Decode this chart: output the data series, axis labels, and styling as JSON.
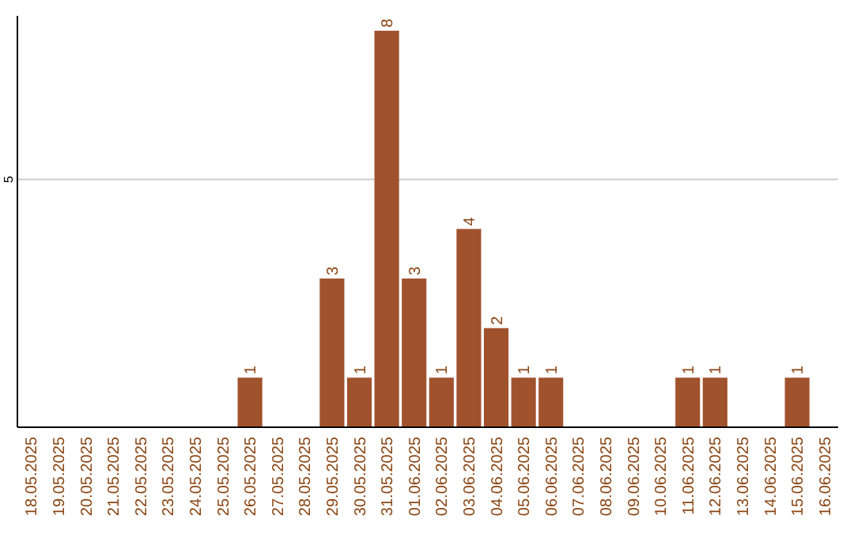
{
  "chart_data": {
    "type": "bar",
    "categories": [
      "18.05.2025",
      "19.05.2025",
      "20.05.2025",
      "21.05.2025",
      "22.05.2025",
      "23.05.2025",
      "24.05.2025",
      "25.05.2025",
      "26.05.2025",
      "27.05.2025",
      "28.05.2025",
      "29.05.2025",
      "30.05.2025",
      "31.05.2025",
      "01.06.2025",
      "02.06.2025",
      "03.06.2025",
      "04.06.2025",
      "05.06.2025",
      "06.06.2025",
      "07.06.2025",
      "08.06.2025",
      "09.06.2025",
      "10.06.2025",
      "11.06.2025",
      "12.06.2025",
      "13.06.2025",
      "14.06.2025",
      "15.06.2025",
      "16.06.2025"
    ],
    "values": [
      0,
      0,
      0,
      0,
      0,
      0,
      0,
      0,
      1,
      0,
      0,
      3,
      1,
      8,
      3,
      1,
      4,
      2,
      1,
      1,
      0,
      0,
      0,
      0,
      1,
      1,
      0,
      0,
      1,
      0
    ],
    "value_labels": [
      null,
      null,
      null,
      null,
      null,
      null,
      null,
      null,
      "1",
      null,
      null,
      "3",
      "1",
      "8",
      "3",
      "1",
      "4",
      "2",
      "1",
      "1",
      null,
      null,
      null,
      null,
      "1",
      "1",
      null,
      null,
      "1",
      null
    ],
    "color": "#a0522d",
    "ylim": [
      0,
      8.3
    ],
    "yticks": [
      5
    ],
    "grid": "y"
  }
}
